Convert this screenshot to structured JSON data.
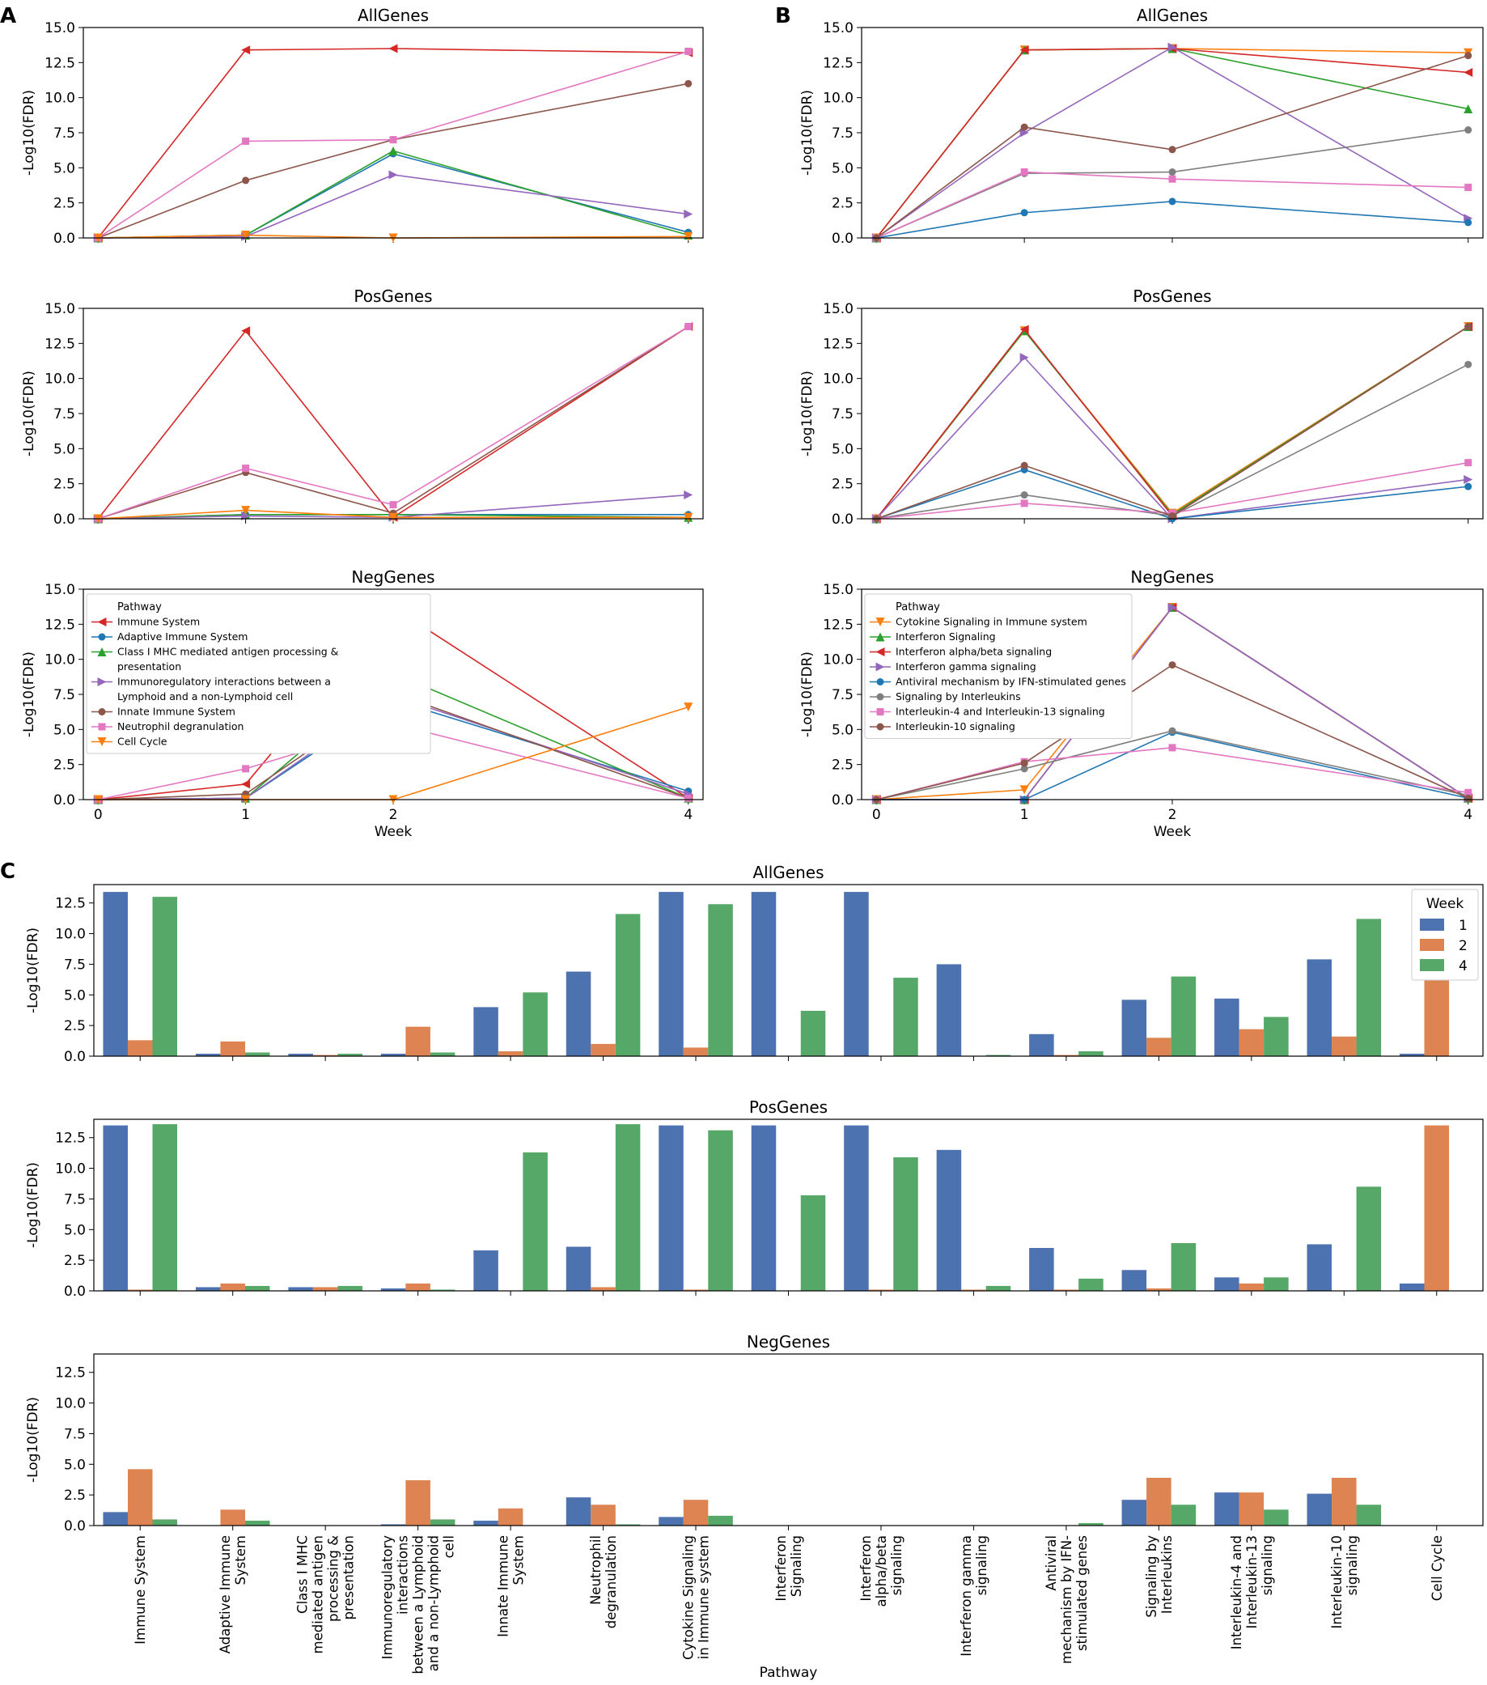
{
  "figure": {
    "panel_labels": [
      "A",
      "B",
      "C"
    ]
  },
  "colors": {
    "tab": [
      "#d62728",
      "#1f77b4",
      "#2ca02c",
      "#9467bd",
      "#8c564b",
      "#e377c2",
      "#ff7f0e",
      "#7f7f7f"
    ],
    "week": {
      "1": "#4c72b0",
      "2": "#dd8452",
      "4": "#55a868"
    }
  },
  "chart_data": [
    {
      "id": "A",
      "type": "line",
      "x": [
        0,
        1,
        2,
        4
      ],
      "xticks": [
        "0",
        "1",
        "2",
        "4"
      ],
      "xlabel": "Week",
      "ylabel": "-Log10(FDR)",
      "ylim": [
        0,
        15
      ],
      "yticks": [
        "0.0",
        "2.5",
        "5.0",
        "7.5",
        "10.0",
        "12.5",
        "15.0"
      ],
      "legend_title": "Pathway",
      "series": [
        {
          "name": "Immune System",
          "color": "#d62728",
          "marker": "tri-left"
        },
        {
          "name": "Adaptive Immune System",
          "color": "#1f77b4",
          "marker": "circle"
        },
        {
          "name": "Class I MHC mediated antigen processing & presentation",
          "color": "#2ca02c",
          "marker": "tri-up"
        },
        {
          "name": "Immunoregulatory interactions between a Lymphoid and a non-Lymphoid cell",
          "color": "#9467bd",
          "marker": "tri-right"
        },
        {
          "name": "Innate Immune System",
          "color": "#8c564b",
          "marker": "circle"
        },
        {
          "name": "Neutrophil degranulation",
          "color": "#e377c2",
          "marker": "square"
        },
        {
          "name": "Cell Cycle",
          "color": "#ff7f0e",
          "marker": "tri-down"
        }
      ],
      "subplots": [
        {
          "title": "AllGenes",
          "values": [
            [
              0,
              13.4,
              13.5,
              13.2
            ],
            [
              0,
              0.2,
              6.0,
              0.4
            ],
            [
              0,
              0.2,
              6.2,
              0.2
            ],
            [
              0,
              0.1,
              4.5,
              1.7
            ],
            [
              0,
              4.1,
              7.0,
              11.0
            ],
            [
              0,
              6.9,
              7.0,
              13.3
            ],
            [
              0,
              0.2,
              0.0,
              0.1
            ]
          ]
        },
        {
          "title": "PosGenes",
          "values": [
            [
              0,
              13.4,
              0.1,
              13.7
            ],
            [
              0,
              0.3,
              0.3,
              0.3
            ],
            [
              0,
              0.3,
              0.3,
              0.1
            ],
            [
              0,
              0.2,
              0.1,
              1.7
            ],
            [
              0,
              3.3,
              0.4,
              13.7
            ],
            [
              0,
              3.6,
              1.0,
              13.7
            ],
            [
              0,
              0.6,
              0.1,
              0.1
            ]
          ]
        },
        {
          "title": "NegGenes",
          "values": [
            [
              0,
              1.1,
              13.7,
              0.1
            ],
            [
              0,
              0.1,
              7.1,
              0.6
            ],
            [
              0,
              0.1,
              9.0,
              0.1
            ],
            [
              0,
              0.1,
              7.4,
              0.4
            ],
            [
              0,
              0.4,
              7.6,
              0.1
            ],
            [
              0,
              2.2,
              5.4,
              0.1
            ],
            [
              0,
              0.0,
              0.0,
              6.6
            ]
          ]
        }
      ]
    },
    {
      "id": "B",
      "type": "line",
      "x": [
        0,
        1,
        2,
        4
      ],
      "xticks": [
        "0",
        "1",
        "2",
        "4"
      ],
      "xlabel": "Week",
      "ylabel": "-Log10(FDR)",
      "ylim": [
        0,
        15
      ],
      "yticks": [
        "0.0",
        "2.5",
        "5.0",
        "7.5",
        "10.0",
        "12.5",
        "15.0"
      ],
      "legend_title": "Pathway",
      "series": [
        {
          "name": "Cytokine Signaling in Immune system",
          "color": "#ff7f0e",
          "marker": "tri-down"
        },
        {
          "name": "Interferon Signaling",
          "color": "#2ca02c",
          "marker": "tri-up"
        },
        {
          "name": "Interferon alpha/beta signaling",
          "color": "#d62728",
          "marker": "tri-left"
        },
        {
          "name": "Interferon gamma signaling",
          "color": "#9467bd",
          "marker": "tri-right"
        },
        {
          "name": "Antiviral mechanism by IFN-stimulated genes",
          "color": "#1f77b4",
          "marker": "circle"
        },
        {
          "name": "Signaling by Interleukins",
          "color": "#7f7f7f",
          "marker": "circle"
        },
        {
          "name": "Interleukin-4 and Interleukin-13 signaling",
          "color": "#e377c2",
          "marker": "square"
        },
        {
          "name": "Interleukin-10 signaling",
          "color": "#8c564b",
          "marker": "circle"
        }
      ],
      "subplots": [
        {
          "title": "AllGenes",
          "values": [
            [
              0,
              13.4,
              13.5,
              13.2
            ],
            [
              0,
              13.4,
              13.5,
              9.2
            ],
            [
              0,
              13.4,
              13.5,
              11.8
            ],
            [
              0,
              7.5,
              13.6,
              1.4
            ],
            [
              0,
              1.8,
              2.6,
              1.1
            ],
            [
              0,
              4.6,
              4.7,
              7.7
            ],
            [
              0,
              4.7,
              4.2,
              3.6
            ],
            [
              0,
              7.9,
              6.3,
              13.0
            ]
          ]
        },
        {
          "title": "PosGenes",
          "values": [
            [
              0,
              13.4,
              0.4,
              13.7
            ],
            [
              0,
              13.4,
              0.3,
              13.7
            ],
            [
              0,
              13.5,
              0.2,
              13.7
            ],
            [
              0,
              11.5,
              0.0,
              2.8
            ],
            [
              0,
              3.5,
              0.0,
              2.3
            ],
            [
              0,
              1.7,
              0.2,
              11.0
            ],
            [
              0,
              1.1,
              0.4,
              4.0
            ],
            [
              0,
              3.8,
              0.2,
              13.7
            ]
          ]
        },
        {
          "title": "NegGenes",
          "values": [
            [
              0,
              0.7,
              13.7,
              0.1
            ],
            [
              0,
              0.0,
              13.7,
              0.1
            ],
            [
              0,
              0.0,
              13.7,
              0.1
            ],
            [
              0,
              0.0,
              13.7,
              0.1
            ],
            [
              0,
              0.0,
              4.8,
              0.1
            ],
            [
              0,
              2.2,
              4.9,
              0.3
            ],
            [
              0,
              2.7,
              3.7,
              0.5
            ],
            [
              0,
              2.6,
              9.6,
              0.1
            ]
          ]
        }
      ]
    },
    {
      "id": "C",
      "type": "bar",
      "xlabel": "Pathway",
      "ylabel": "-Log10(FDR)",
      "ylim": [
        0,
        14
      ],
      "yticks": [
        "0.0",
        "2.5",
        "5.0",
        "7.5",
        "10.0",
        "12.5"
      ],
      "legend_title": "Week",
      "legend_items": [
        "1",
        "2",
        "4"
      ],
      "categories": [
        "Immune System",
        "Adaptive Immune\nSystem",
        "Class I MHC\nmediated antigen\nprocessing &\npresentation",
        "Immunoregulatory\ninteractions\nbetween a Lymphoid\nand a non-Lymphoid\ncell",
        "Innate Immune\nSystem",
        "Neutrophil\ndegranulation",
        "Cytokine Signaling\nin Immune system",
        "Interferon\nSignaling",
        "Interferon\nalpha/beta\nsignaling",
        "Interferon gamma\nsignaling",
        "Antiviral\nmechanism by IFN-\nstimulated genes",
        "Signaling by\nInterleukins",
        "Interleukin-4 and\nInterleukin-13\nsignaling",
        "Interleukin-10\nsignaling",
        "Cell Cycle"
      ],
      "subplots": [
        {
          "title": "AllGenes",
          "series": [
            {
              "name": "1",
              "values": [
                13.4,
                0.2,
                0.2,
                0.2,
                4.0,
                6.9,
                13.4,
                13.4,
                13.4,
                7.5,
                1.8,
                4.6,
                4.7,
                7.9,
                0.2
              ]
            },
            {
              "name": "2",
              "values": [
                1.3,
                1.2,
                0.1,
                2.4,
                0.4,
                1.0,
                0.7,
                0.0,
                0.0,
                0.0,
                0.1,
                1.5,
                2.2,
                1.6,
                9.0
              ]
            },
            {
              "name": "4",
              "values": [
                13.0,
                0.3,
                0.2,
                0.3,
                5.2,
                11.6,
                12.4,
                3.7,
                6.4,
                0.1,
                0.4,
                6.5,
                3.2,
                11.2,
                0.0
              ]
            }
          ]
        },
        {
          "title": "PosGenes",
          "series": [
            {
              "name": "1",
              "values": [
                13.5,
                0.3,
                0.3,
                0.2,
                3.3,
                3.6,
                13.5,
                13.5,
                13.5,
                11.5,
                3.5,
                1.7,
                1.1,
                3.8,
                0.6
              ]
            },
            {
              "name": "2",
              "values": [
                0.1,
                0.6,
                0.3,
                0.6,
                0.0,
                0.3,
                0.1,
                0.0,
                0.1,
                0.1,
                0.1,
                0.2,
                0.6,
                0.0,
                13.5
              ]
            },
            {
              "name": "4",
              "values": [
                13.6,
                0.4,
                0.4,
                0.1,
                11.3,
                13.6,
                13.1,
                7.8,
                10.9,
                0.4,
                1.0,
                3.9,
                1.1,
                8.5,
                0.0
              ]
            }
          ]
        },
        {
          "title": "NegGenes",
          "series": [
            {
              "name": "1",
              "values": [
                1.1,
                0.0,
                0.0,
                0.1,
                0.4,
                2.3,
                0.7,
                0.0,
                0.0,
                0.0,
                0.0,
                2.1,
                2.7,
                2.6,
                0.0
              ]
            },
            {
              "name": "2",
              "values": [
                4.6,
                1.3,
                0.0,
                3.7,
                1.4,
                1.7,
                2.1,
                0.0,
                0.0,
                0.0,
                0.0,
                3.9,
                2.7,
                3.9,
                0.0
              ]
            },
            {
              "name": "4",
              "values": [
                0.5,
                0.4,
                0.0,
                0.5,
                0.0,
                0.1,
                0.8,
                0.0,
                0.0,
                0.0,
                0.2,
                1.7,
                1.3,
                1.7,
                0.0
              ]
            }
          ]
        }
      ]
    }
  ]
}
